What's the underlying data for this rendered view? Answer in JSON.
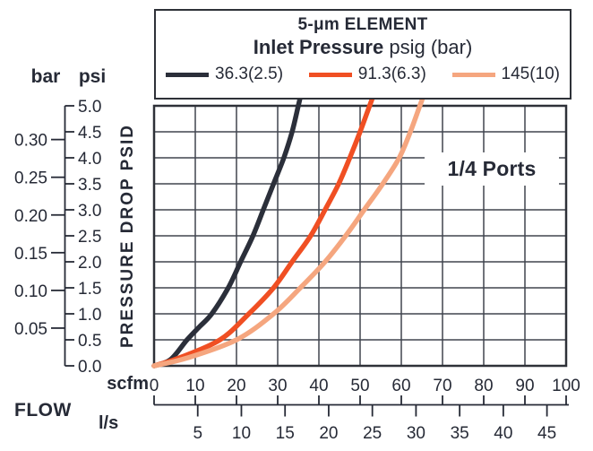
{
  "chart_data": {
    "type": "line",
    "title": "5-μm ELEMENT",
    "subtitle_bold": "Inlet Pressure",
    "subtitle_units": "psig (bar)",
    "legend_position": "top",
    "grid": true,
    "annotation": "1/4 Ports",
    "xlabel": "scfm",
    "x2label": "l/s",
    "flow_label": "FLOW",
    "ylabel": "PRESSURE DROP PSID",
    "ylabel_units": "psi",
    "y2label": "bar",
    "xlim": [
      0,
      100
    ],
    "ylim": [
      0,
      5
    ],
    "x_ticks_scfm": [
      0,
      10,
      20,
      30,
      40,
      50,
      60,
      70,
      80,
      90,
      100
    ],
    "x_ticks_ls": [
      5,
      10,
      15,
      20,
      25,
      30,
      35,
      40,
      45
    ],
    "ls_to_scfm": 2.1189,
    "y_ticks_psi": [
      0,
      0.5,
      1,
      1.5,
      2,
      2.5,
      3,
      3.5,
      4,
      4.5,
      5
    ],
    "y_ticks_bar": [
      0.05,
      0.1,
      0.15,
      0.2,
      0.25,
      0.3
    ],
    "bar_to_psi": 14.5038,
    "ink_color": "#262a36",
    "grid_color": "#41454f",
    "border_color": "#2e3138",
    "series": [
      {
        "name": "36.3(2.5)",
        "color": "#2b2f3a",
        "points_scfm_psid": [
          [
            0,
            0
          ],
          [
            4,
            0.12
          ],
          [
            8,
            0.5
          ],
          [
            11,
            0.75
          ],
          [
            14,
            1.0
          ],
          [
            18,
            1.5
          ],
          [
            21,
            2.0
          ],
          [
            24,
            2.5
          ],
          [
            26.5,
            3.0
          ],
          [
            29,
            3.5
          ],
          [
            31.5,
            4.0
          ],
          [
            33.5,
            4.5
          ],
          [
            35,
            5.0
          ]
        ]
      },
      {
        "name": "91.3(6.3)",
        "color": "#f04f23",
        "points_scfm_psid": [
          [
            0,
            0
          ],
          [
            6,
            0.15
          ],
          [
            16,
            0.5
          ],
          [
            23,
            1.0
          ],
          [
            29,
            1.5
          ],
          [
            33.5,
            2.0
          ],
          [
            38,
            2.5
          ],
          [
            41.5,
            3.0
          ],
          [
            44.8,
            3.5
          ],
          [
            47.5,
            4.0
          ],
          [
            50,
            4.5
          ],
          [
            52.3,
            5.0
          ]
        ]
      },
      {
        "name": "145(10)",
        "color": "#f5a67f",
        "points_scfm_psid": [
          [
            0,
            0
          ],
          [
            8,
            0.15
          ],
          [
            20,
            0.5
          ],
          [
            29,
            1.0
          ],
          [
            35.5,
            1.5
          ],
          [
            41.5,
            2.0
          ],
          [
            46.5,
            2.5
          ],
          [
            51,
            3.0
          ],
          [
            55.5,
            3.5
          ],
          [
            59.5,
            4.0
          ],
          [
            62.2,
            4.5
          ],
          [
            64.5,
            5.0
          ]
        ]
      }
    ]
  }
}
